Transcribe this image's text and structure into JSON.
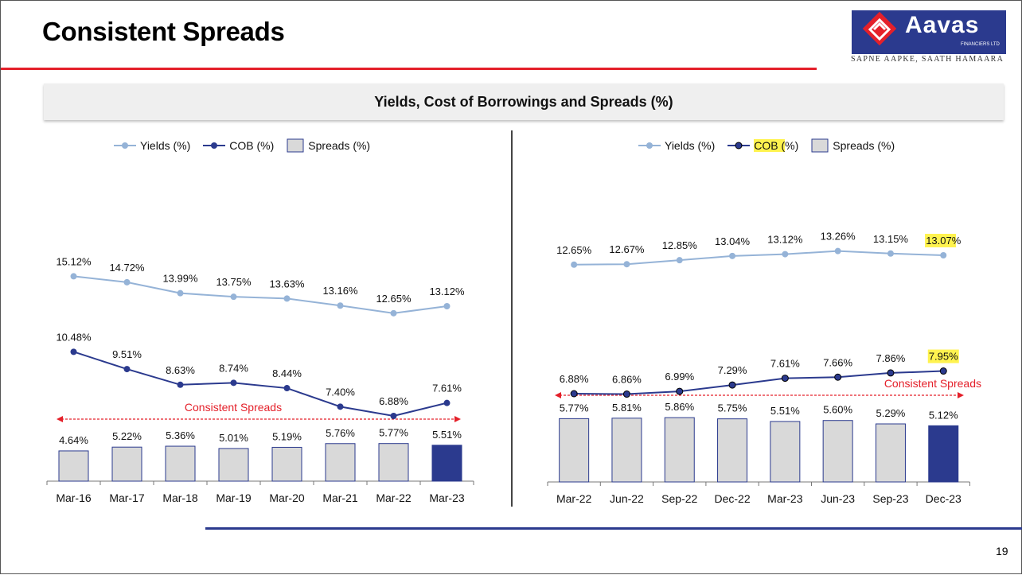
{
  "header": {
    "title": "Consistent Spreads",
    "logo_text": "Aavas",
    "logo_sub": "FINANCIERS LTD",
    "tagline": "SAPNE AAPKE, SAATH HAMAARA",
    "subtitle": "Yields, Cost of Borrowings and Spreads (%)",
    "page_number": "19"
  },
  "colors": {
    "yields": "#95b3d7",
    "cob": "#2b3a8e",
    "spread_bar": "#d9d9d9",
    "spread_bar_highlight": "#2b3a8e",
    "annotation": "#e4202a",
    "highlight": "#fff34f"
  },
  "legend": {
    "yields": "Yields (%)",
    "cob": "COB (%)",
    "cob_parts": [
      "COB (",
      "%)"
    ],
    "spreads": "Spreads (%)"
  },
  "chart_data": [
    {
      "type": "bar+line",
      "title": "",
      "categories": [
        "Mar-16",
        "Mar-17",
        "Mar-18",
        "Mar-19",
        "Mar-20",
        "Mar-21",
        "Mar-22",
        "Mar-23"
      ],
      "series": [
        {
          "name": "Yields (%)",
          "type": "line",
          "values": [
            15.12,
            14.72,
            13.99,
            13.75,
            13.63,
            13.16,
            12.65,
            13.12
          ],
          "labels": [
            "15.12%",
            "14.72%",
            "13.99%",
            "13.75%",
            "13.63%",
            "13.16%",
            "12.65%",
            "13.12%"
          ]
        },
        {
          "name": "COB (%)",
          "type": "line",
          "values": [
            10.48,
            9.51,
            8.63,
            8.74,
            8.44,
            7.4,
            6.88,
            7.61
          ],
          "labels": [
            "10.48%",
            "9.51%",
            "8.63%",
            "8.74%",
            "8.44%",
            "7.40%",
            "6.88%",
            "7.61%"
          ]
        },
        {
          "name": "Spreads (%)",
          "type": "bar",
          "values": [
            4.64,
            5.22,
            5.36,
            5.01,
            5.19,
            5.76,
            5.77,
            5.51
          ],
          "labels": [
            "4.64%",
            "5.22%",
            "5.36%",
            "5.01%",
            "5.19%",
            "5.76%",
            "5.77%",
            "5.51%"
          ]
        }
      ],
      "annotation": "Consistent Spreads",
      "highlight_last_bar": true
    },
    {
      "type": "bar+line",
      "title": "",
      "categories": [
        "Mar-22",
        "Jun-22",
        "Sep-22",
        "Dec-22",
        "Mar-23",
        "Jun-23",
        "Sep-23",
        "Dec-23"
      ],
      "series": [
        {
          "name": "Yields (%)",
          "type": "line",
          "values": [
            12.65,
            12.67,
            12.85,
            13.04,
            13.12,
            13.26,
            13.15,
            13.07
          ],
          "labels": [
            "12.65%",
            "12.67%",
            "12.85%",
            "13.04%",
            "13.12%",
            "13.26%",
            "13.15%",
            "13.07%"
          ]
        },
        {
          "name": "COB (%)",
          "type": "line",
          "values": [
            6.88,
            6.86,
            6.99,
            7.29,
            7.61,
            7.66,
            7.86,
            7.95
          ],
          "labels": [
            "6.88%",
            "6.86%",
            "6.99%",
            "7.29%",
            "7.61%",
            "7.66%",
            "7.86%",
            "7.95%"
          ]
        },
        {
          "name": "Spreads (%)",
          "type": "bar",
          "values": [
            5.77,
            5.81,
            5.86,
            5.75,
            5.51,
            5.6,
            5.29,
            5.12
          ],
          "labels": [
            "5.77%",
            "5.81%",
            "5.86%",
            "5.75%",
            "5.51%",
            "5.60%",
            "5.29%",
            "5.12%"
          ]
        }
      ],
      "annotation": "Consistent Spreads",
      "highlight_last_bar": true,
      "highlighted_labels": [
        "13.07",
        "7.95%"
      ]
    }
  ]
}
